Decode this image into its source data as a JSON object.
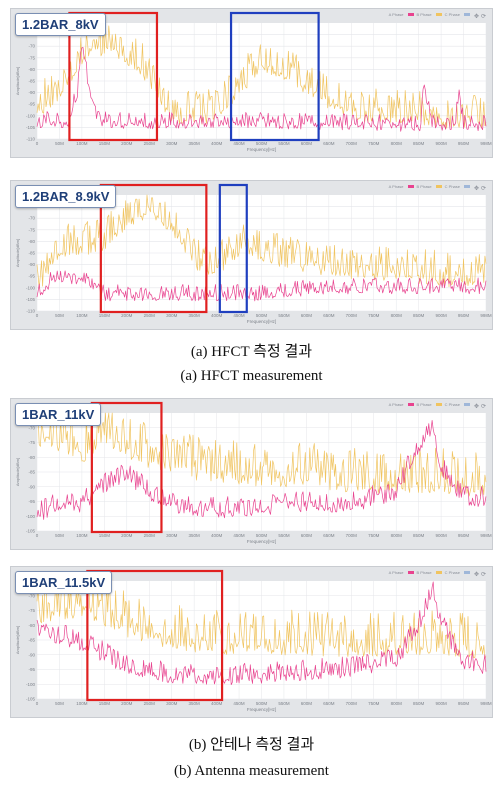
{
  "captions": {
    "a_korean": "(a) HFCT 측정 결과",
    "a_english": "(a) HFCT measurement",
    "b_korean": "(b) 안테나 측정 결과",
    "b_english": "(b) Antenna measurement"
  },
  "legend": {
    "a": "A Phase",
    "b": "B Phase",
    "c": "C Phase"
  },
  "colors": {
    "series_pink": "#e8438f",
    "series_yellow": "#f0c460",
    "box_red": "#e02020",
    "box_blue": "#1f3fbf",
    "plot_bg": "#ffffff",
    "grid": "#e4e6ea"
  },
  "chart_data": [
    {
      "type": "line",
      "label": "1.2BAR_8kV",
      "xlabel": "Frequency[Hz]",
      "ylabel": "Amplitude[dBm]",
      "x_ticks": [
        "0",
        "50M",
        "100M",
        "150M",
        "200M",
        "250M",
        "300M",
        "350M",
        "400M",
        "450M",
        "500M",
        "550M",
        "600M",
        "650M",
        "700M",
        "750M",
        "800M",
        "850M",
        "900M",
        "950M",
        "998M"
      ],
      "y_ticks": [
        "-65",
        "-70",
        "-75",
        "-80",
        "-85",
        "-90",
        "-95",
        "-100",
        "-105",
        "-110"
      ],
      "ylim": [
        -110,
        -60
      ],
      "xlim": [
        0,
        1000
      ],
      "highlight_boxes": [
        {
          "color": "red",
          "x_range": [
            90,
            285
          ]
        },
        {
          "color": "blue",
          "x_range": [
            450,
            645
          ]
        }
      ],
      "series": [
        {
          "color": "pink",
          "profile": [
            [
              0,
              -103
            ],
            [
              40,
              -102
            ],
            [
              70,
              -103
            ],
            [
              90,
              -90
            ],
            [
              100,
              -68
            ],
            [
              110,
              -80
            ],
            [
              120,
              -95
            ],
            [
              140,
              -102
            ],
            [
              200,
              -103
            ],
            [
              300,
              -103
            ],
            [
              500,
              -103
            ],
            [
              800,
              -104
            ],
            [
              855,
              -104
            ],
            [
              860,
              -90
            ],
            [
              870,
              -94
            ],
            [
              880,
              -104
            ],
            [
              930,
              -104
            ],
            [
              940,
              -90
            ],
            [
              950,
              -104
            ],
            [
              998,
              -104
            ]
          ]
        },
        {
          "color": "yellow",
          "profile": [
            [
              0,
              -98
            ],
            [
              70,
              -85
            ],
            [
              110,
              -72
            ],
            [
              170,
              -70
            ],
            [
              230,
              -78
            ],
            [
              300,
              -100
            ],
            [
              380,
              -100
            ],
            [
              440,
              -90
            ],
            [
              500,
              -78
            ],
            [
              560,
              -82
            ],
            [
              620,
              -90
            ],
            [
              700,
              -98
            ],
            [
              800,
              -100
            ],
            [
              900,
              -101
            ],
            [
              998,
              -102
            ]
          ]
        }
      ]
    },
    {
      "type": "line",
      "label": "1.2BAR_8.9kV",
      "xlabel": "Frequency[Hz]",
      "ylabel": "Amplitude[dBm]",
      "x_ticks": [
        "0",
        "50M",
        "100M",
        "150M",
        "200M",
        "250M",
        "300M",
        "350M",
        "400M",
        "450M",
        "500M",
        "550M",
        "600M",
        "650M",
        "700M",
        "750M",
        "800M",
        "850M",
        "900M",
        "950M",
        "998M"
      ],
      "y_ticks": [
        "-65",
        "-70",
        "-75",
        "-80",
        "-85",
        "-90",
        "-95",
        "-100",
        "-105",
        "-110"
      ],
      "ylim": [
        -110,
        -60
      ],
      "xlim": [
        0,
        1000
      ],
      "highlight_boxes": [
        {
          "color": "red",
          "x_range": [
            160,
            395
          ]
        },
        {
          "color": "blue",
          "x_range": [
            425,
            485
          ]
        }
      ],
      "series": [
        {
          "color": "pink",
          "profile": [
            [
              0,
              -103
            ],
            [
              40,
              -95
            ],
            [
              100,
              -96
            ],
            [
              150,
              -103
            ],
            [
              300,
              -103
            ],
            [
              400,
              -103
            ],
            [
              450,
              -103
            ],
            [
              500,
              -103
            ],
            [
              600,
              -101
            ],
            [
              700,
              -100
            ],
            [
              800,
              -100
            ],
            [
              900,
              -100
            ],
            [
              998,
              -100
            ]
          ]
        },
        {
          "color": "yellow",
          "profile": [
            [
              0,
              -100
            ],
            [
              40,
              -85
            ],
            [
              100,
              -82
            ],
            [
              150,
              -80
            ],
            [
              200,
              -70
            ],
            [
              250,
              -66
            ],
            [
              300,
              -72
            ],
            [
              350,
              -88
            ],
            [
              400,
              -92
            ],
            [
              450,
              -82
            ],
            [
              500,
              -85
            ],
            [
              550,
              -88
            ],
            [
              600,
              -90
            ],
            [
              700,
              -92
            ],
            [
              800,
              -93
            ],
            [
              900,
              -95
            ],
            [
              998,
              -97
            ]
          ]
        }
      ]
    },
    {
      "type": "line",
      "label": "1BAR_11kV",
      "xlabel": "Frequency[Hz]",
      "ylabel": "Amplitude[dBm]",
      "x_ticks": [
        "0",
        "50M",
        "100M",
        "150M",
        "200M",
        "250M",
        "300M",
        "350M",
        "400M",
        "450M",
        "500M",
        "550M",
        "600M",
        "650M",
        "700M",
        "750M",
        "800M",
        "850M",
        "900M",
        "950M",
        "998M"
      ],
      "y_ticks": [
        "-70",
        "-75",
        "-80",
        "-85",
        "-90",
        "-95",
        "-100",
        "-105"
      ],
      "ylim": [
        -105,
        -65
      ],
      "xlim": [
        0,
        1000
      ],
      "highlight_boxes": [
        {
          "color": "red",
          "x_range": [
            140,
            295
          ]
        }
      ],
      "series": [
        {
          "color": "pink",
          "profile": [
            [
              0,
              -100
            ],
            [
              50,
              -95
            ],
            [
              100,
              -96
            ],
            [
              150,
              -90
            ],
            [
              200,
              -86
            ],
            [
              250,
              -92
            ],
            [
              300,
              -96
            ],
            [
              400,
              -98
            ],
            [
              500,
              -97
            ],
            [
              600,
              -96
            ],
            [
              700,
              -96
            ],
            [
              800,
              -92
            ],
            [
              850,
              -76
            ],
            [
              880,
              -70
            ],
            [
              900,
              -84
            ],
            [
              950,
              -94
            ],
            [
              998,
              -94
            ]
          ]
        },
        {
          "color": "yellow",
          "profile": [
            [
              0,
              -72
            ],
            [
              50,
              -74
            ],
            [
              100,
              -78
            ],
            [
              150,
              -72
            ],
            [
              200,
              -76
            ],
            [
              250,
              -80
            ],
            [
              300,
              -82
            ],
            [
              400,
              -85
            ],
            [
              500,
              -86
            ],
            [
              600,
              -86
            ],
            [
              700,
              -88
            ],
            [
              800,
              -88
            ],
            [
              900,
              -88
            ],
            [
              998,
              -90
            ]
          ]
        }
      ]
    },
    {
      "type": "line",
      "label": "1BAR_11.5kV",
      "xlabel": "Frequency[Hz]",
      "ylabel": "Amplitude[dBm]",
      "x_ticks": [
        "0",
        "50M",
        "100M",
        "150M",
        "200M",
        "250M",
        "300M",
        "350M",
        "400M",
        "450M",
        "500M",
        "550M",
        "600M",
        "650M",
        "700M",
        "750M",
        "800M",
        "850M",
        "900M",
        "950M",
        "998M"
      ],
      "y_ticks": [
        "-70",
        "-75",
        "-80",
        "-85",
        "-90",
        "-95",
        "-100",
        "-105"
      ],
      "ylim": [
        -105,
        -65
      ],
      "xlim": [
        0,
        1000
      ],
      "highlight_boxes": [
        {
          "color": "red",
          "x_range": [
            130,
            430
          ]
        }
      ],
      "series": [
        {
          "color": "pink",
          "profile": [
            [
              0,
              -82
            ],
            [
              50,
              -84
            ],
            [
              100,
              -86
            ],
            [
              150,
              -90
            ],
            [
              200,
              -94
            ],
            [
              250,
              -96
            ],
            [
              300,
              -97
            ],
            [
              400,
              -98
            ],
            [
              500,
              -97
            ],
            [
              600,
              -96
            ],
            [
              700,
              -95
            ],
            [
              800,
              -92
            ],
            [
              850,
              -80
            ],
            [
              880,
              -68
            ],
            [
              900,
              -80
            ],
            [
              950,
              -92
            ],
            [
              998,
              -94
            ]
          ]
        },
        {
          "color": "yellow",
          "profile": [
            [
              0,
              -76
            ],
            [
              50,
              -74
            ],
            [
              100,
              -73
            ],
            [
              150,
              -76
            ],
            [
              200,
              -80
            ],
            [
              250,
              -82
            ],
            [
              300,
              -84
            ],
            [
              400,
              -86
            ],
            [
              500,
              -86
            ],
            [
              600,
              -86
            ],
            [
              700,
              -87
            ],
            [
              800,
              -86
            ],
            [
              900,
              -86
            ],
            [
              998,
              -88
            ]
          ]
        }
      ]
    }
  ]
}
